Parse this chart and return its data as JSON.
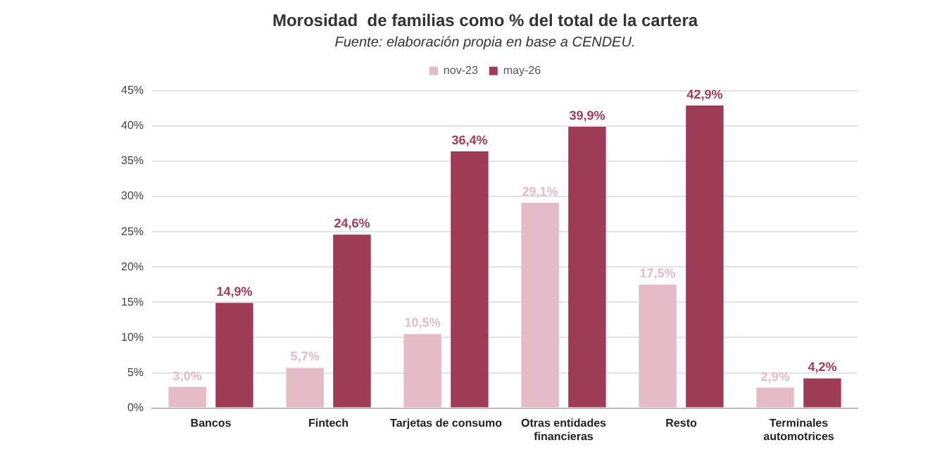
{
  "chart_data": {
    "type": "bar",
    "title": "Morosidad  de familias como % del total de la cartera",
    "subtitle": "Fuente: elaboración propia en base a CENDEU.",
    "categories": [
      "Bancos",
      "Fintech",
      "Tarjetas de consumo",
      "Otras entidades financieras",
      "Resto",
      "Terminales automotrices"
    ],
    "series": [
      {
        "name": "nov-23",
        "color": "#e3bcc5",
        "values": [
          3.0,
          5.7,
          10.5,
          29.1,
          17.5,
          2.9
        ],
        "value_labels": [
          "3,0%",
          "5,7%",
          "10,5%",
          "29,1%",
          "17,5%",
          "2,9%"
        ]
      },
      {
        "name": "may-26",
        "color": "#9e3b55",
        "values": [
          14.9,
          24.6,
          36.4,
          39.9,
          42.9,
          4.2
        ],
        "value_labels": [
          "14,9%",
          "24,6%",
          "36,4%",
          "39,9%",
          "42,9%",
          "4,2%"
        ]
      }
    ],
    "ylim": [
      0,
      45
    ],
    "yticks": [
      {
        "value": 0,
        "label": "0%"
      },
      {
        "value": 5,
        "label": "5%"
      },
      {
        "value": 10,
        "label": "10%"
      },
      {
        "value": 15,
        "label": "15%"
      },
      {
        "value": 20,
        "label": "20%"
      },
      {
        "value": 25,
        "label": "25%"
      },
      {
        "value": 30,
        "label": "30%"
      },
      {
        "value": 35,
        "label": "35%"
      },
      {
        "value": 40,
        "label": "40%"
      },
      {
        "value": 45,
        "label": "45%"
      }
    ],
    "grid": "y",
    "legend": "top"
  }
}
